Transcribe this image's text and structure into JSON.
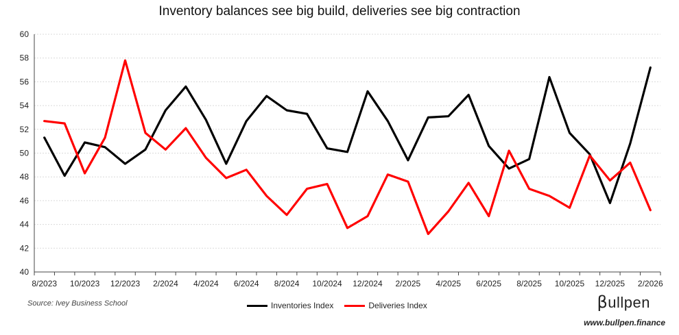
{
  "chart_data": {
    "type": "line",
    "title": "Inventory balances see big build, deliveries see big contraction",
    "x": [
      "8/2023",
      "9/2023",
      "10/2023",
      "11/2023",
      "12/2023",
      "1/2024",
      "2/2024",
      "3/2024",
      "4/2024",
      "5/2024",
      "6/2024",
      "7/2024",
      "8/2024",
      "9/2024",
      "10/2024",
      "11/2024",
      "12/2024",
      "1/2025",
      "2/2025",
      "3/2025",
      "4/2025",
      "5/2025",
      "6/2025",
      "7/2025",
      "8/2025",
      "9/2025",
      "10/2025",
      "11/2025",
      "12/2025",
      "1/2026",
      "2/2026"
    ],
    "xtick_labels": [
      "8/2023",
      "10/2023",
      "12/2023",
      "2/2024",
      "4/2024",
      "6/2024",
      "8/2024",
      "10/2024",
      "12/2024",
      "2/2025",
      "4/2025",
      "6/2025",
      "8/2025",
      "10/2025",
      "12/2025",
      "2/2026"
    ],
    "ytick_labels": [
      "40",
      "42",
      "44",
      "46",
      "48",
      "50",
      "52",
      "54",
      "56",
      "58",
      "60"
    ],
    "ylim": [
      40,
      60
    ],
    "grid": true,
    "series": [
      {
        "name": "Inventories Index",
        "color": "#000000",
        "values": [
          51.3,
          48.1,
          50.9,
          50.5,
          49.1,
          50.3,
          53.6,
          55.6,
          52.8,
          49.1,
          52.7,
          54.8,
          53.6,
          53.3,
          50.4,
          50.1,
          55.2,
          52.7,
          49.4,
          53.0,
          53.1,
          54.9,
          50.6,
          48.7,
          49.5,
          56.4,
          51.7,
          49.9,
          45.8,
          50.8,
          57.2
        ]
      },
      {
        "name": "Deliveries Index",
        "color": "#ff0000",
        "values": [
          52.7,
          52.5,
          48.3,
          51.3,
          57.8,
          51.7,
          50.3,
          52.1,
          49.6,
          47.9,
          48.6,
          46.4,
          44.8,
          47.0,
          47.4,
          43.7,
          44.7,
          48.2,
          47.6,
          43.2,
          45.1,
          47.5,
          44.7,
          50.2,
          47.0,
          46.4,
          45.4,
          49.8,
          47.7,
          49.2,
          45.2
        ]
      }
    ],
    "legend_position": "bottom-center"
  },
  "source": "Source: Ivey Business School",
  "brand": {
    "mark": "β",
    "name": "ullpen",
    "url": "www.bullpen.finance"
  }
}
